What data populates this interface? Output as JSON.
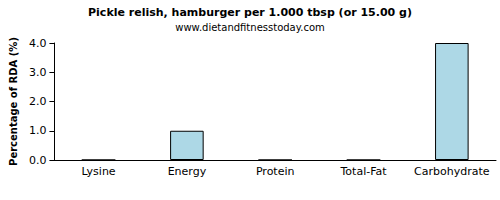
{
  "chart_data": {
    "type": "bar",
    "title": "Pickle relish, hamburger per 1.000 tbsp (or 15.00 g)",
    "subtitle": "www.dietandfitnesstoday.com",
    "y_label": "Percentage of RDA (%)",
    "categories": [
      "Lysine",
      "Energy",
      "Protein",
      "Total-Fat",
      "Carbohydrate"
    ],
    "values": [
      0,
      1,
      0,
      0,
      4
    ],
    "color": "#add8e6",
    "ylim": [
      0,
      4
    ],
    "yticks": [
      {
        "value": 0,
        "label": "0.0"
      },
      {
        "value": 1,
        "label": "1.0"
      },
      {
        "value": 2,
        "label": "2.0"
      },
      {
        "value": 3,
        "label": "3.0"
      },
      {
        "value": 4,
        "label": "4.0"
      }
    ],
    "grid": false
  }
}
